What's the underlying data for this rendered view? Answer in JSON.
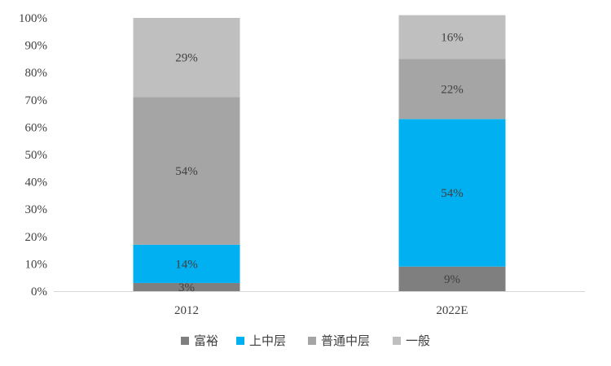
{
  "chart_data": {
    "type": "bar",
    "stacked": true,
    "categories": [
      "2012",
      "2022E"
    ],
    "series": [
      {
        "name": "富裕",
        "values": [
          3,
          9
        ],
        "labels": [
          "3%",
          "9%"
        ],
        "color": "#7f7f7f"
      },
      {
        "name": "上中层",
        "values": [
          14,
          54
        ],
        "labels": [
          "14%",
          "54%"
        ],
        "color": "#00b0f0"
      },
      {
        "name": "普通中层",
        "values": [
          54,
          22
        ],
        "labels": [
          "54%",
          "22%"
        ],
        "color": "#a5a5a5"
      },
      {
        "name": "一般",
        "values": [
          29,
          16
        ],
        "labels": [
          "29%",
          "16%"
        ],
        "color": "#bfbfbf"
      }
    ],
    "ylim": [
      0,
      100
    ],
    "yticks": [
      "0%",
      "10%",
      "20%",
      "30%",
      "40%",
      "50%",
      "60%",
      "70%",
      "80%",
      "90%",
      "100%"
    ],
    "grid": false,
    "legend_position": "bottom"
  }
}
